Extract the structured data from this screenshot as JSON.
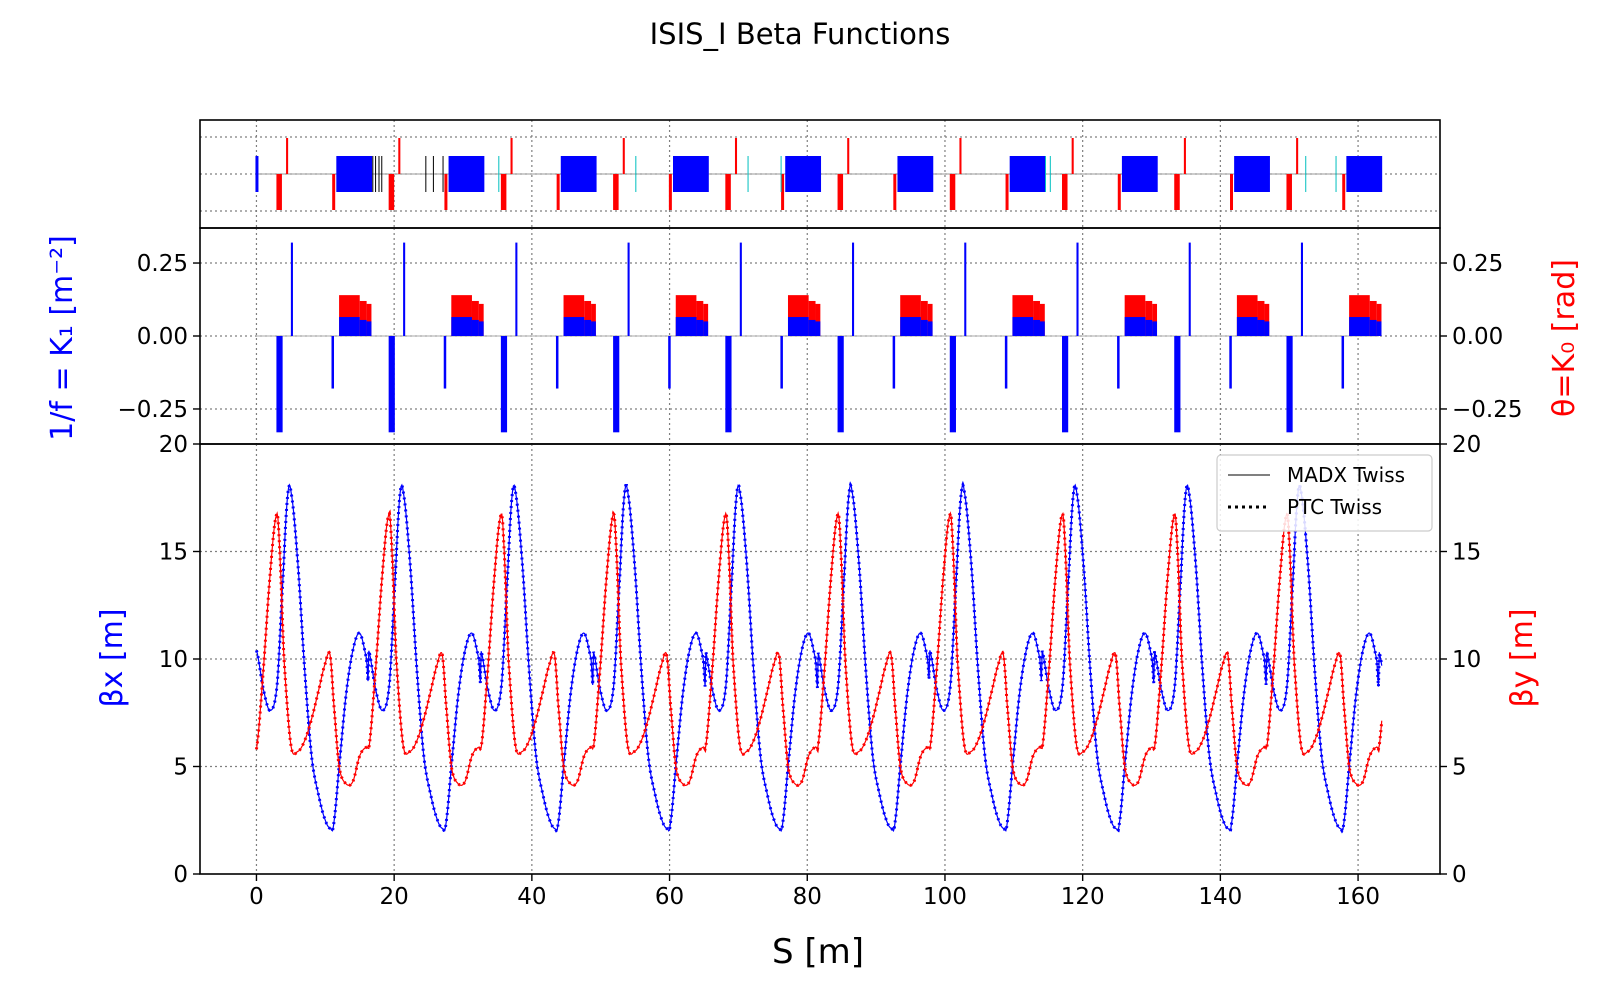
{
  "title": "ISIS_I Beta Functions",
  "colors": {
    "horizontal": "#0000ff",
    "vertical": "#ff0000",
    "kicker": "#00bfbf",
    "monitor": "#000000",
    "grid": "#7f7f7f"
  },
  "chart_data": [
    {
      "type": "layout",
      "name": "lattice",
      "xlim": [
        -8.2,
        171.9
      ],
      "period": 16.3,
      "cells": 10,
      "elements_per_cell": {
        "quad_focus_s": [
          3.1,
          4.6
        ],
        "quad_defocus_s": [
          11.0,
          11.4
        ],
        "quad_defocus2_s": [
          -0.2,
          0.6
        ],
        "dipole_s": [
          11.6,
          16.8
        ]
      },
      "grid": true
    },
    {
      "type": "bar",
      "name": "strengths",
      "xlim": [
        -8.2,
        171.9
      ],
      "ylim": [
        -0.37,
        0.37
      ],
      "yticks": [
        "0.25",
        "0.00",
        "−0.25"
      ],
      "ylabel_left": "1/f = K₁ [m⁻²]",
      "ylabel_right": "θ=K₀ [rad]",
      "k1_per_cell": [
        {
          "s": [
            4.3,
            5.3
          ],
          "k1": 0.32
        },
        {
          "s": [
            10.9,
            11.2
          ],
          "k1": -0.18
        },
        {
          "s": [
            2.9,
            3.8
          ],
          "k1": -0.33
        }
      ],
      "k0_per_cell": [
        {
          "s": [
            12.0,
            15.0
          ],
          "k0": 0.14,
          "k1": 0.065
        },
        {
          "s": [
            15.0,
            16.0
          ],
          "k0": 0.12,
          "k1": 0.055
        },
        {
          "s": [
            16.0,
            16.7
          ],
          "k0": 0.11,
          "k1": 0.05
        }
      ],
      "grid": true
    },
    {
      "type": "line",
      "name": "beta",
      "title": "ISIS_I Beta Functions",
      "xlabel": "S [m]",
      "ylabel_left": "βx [m]",
      "ylabel_right": "βy [m]",
      "xlim": [
        -8.2,
        171.9
      ],
      "ylim": [
        0,
        20
      ],
      "xticks": [
        "0",
        "20",
        "40",
        "60",
        "80",
        "100",
        "120",
        "140",
        "160"
      ],
      "yticks": [
        "0",
        "5",
        "10",
        "15",
        "20"
      ],
      "period": 16.3,
      "cells": 10,
      "series": [
        {
          "name": "βx",
          "cell_s": [
            0.0,
            1.0,
            2.0,
            3.0,
            3.9,
            4.5,
            5.0,
            6.0,
            7.0,
            8.0,
            9.0,
            10.0,
            10.8,
            11.2,
            12.0,
            13.0,
            14.0,
            15.0,
            16.0,
            16.3
          ],
          "cell_values": [
            10.4,
            8.6,
            7.6,
            8.8,
            14.0,
            17.5,
            17.8,
            14.5,
            9.5,
            5.5,
            3.7,
            2.5,
            2.1,
            2.3,
            5.0,
            8.3,
            10.4,
            11.2,
            10.0,
            8.6
          ]
        },
        {
          "name": "βy",
          "cell_s": [
            0.0,
            1.0,
            2.0,
            2.9,
            3.3,
            4.0,
            5.0,
            6.0,
            7.0,
            8.0,
            9.0,
            10.0,
            10.7,
            11.2,
            12.0,
            13.0,
            14.0,
            15.0,
            16.0,
            16.3
          ],
          "cell_values": [
            5.8,
            9.5,
            14.0,
            16.7,
            15.5,
            10.0,
            6.0,
            5.7,
            6.2,
            7.2,
            8.5,
            9.8,
            10.2,
            8.0,
            5.0,
            4.2,
            4.3,
            5.5,
            5.9,
            5.8
          ]
        }
      ],
      "legend": {
        "position": "top-right",
        "entries": [
          "MADX Twiss",
          "PTC Twiss"
        ]
      },
      "grid": true
    }
  ]
}
